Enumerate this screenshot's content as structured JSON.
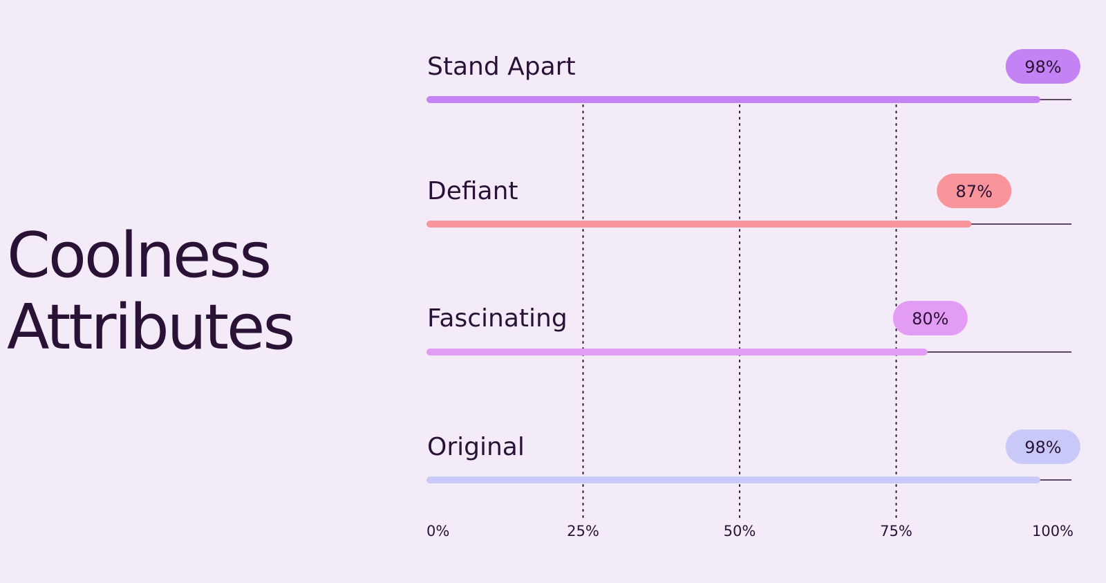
{
  "chart_data": {
    "type": "bar",
    "orientation": "horizontal",
    "title_lines": [
      "Coolness",
      "Attributes"
    ],
    "categories": [
      "Stand Apart",
      "Defiant",
      "Fascinating",
      "Original"
    ],
    "values": [
      98,
      87,
      80,
      98
    ],
    "value_labels": [
      "98%",
      "87%",
      "80%",
      "98%"
    ],
    "colors": [
      "#c383f4",
      "#f7959b",
      "#e29cf3",
      "#c9c9f9"
    ],
    "xlim": [
      0,
      100
    ],
    "x_ticks": [
      0,
      25,
      50,
      75,
      100
    ],
    "x_tick_labels": [
      "0%",
      "25%",
      "50%",
      "75%",
      "100%"
    ],
    "grid": "dotted vertical lines at 25%, 50%, 75%",
    "legend": "none"
  }
}
